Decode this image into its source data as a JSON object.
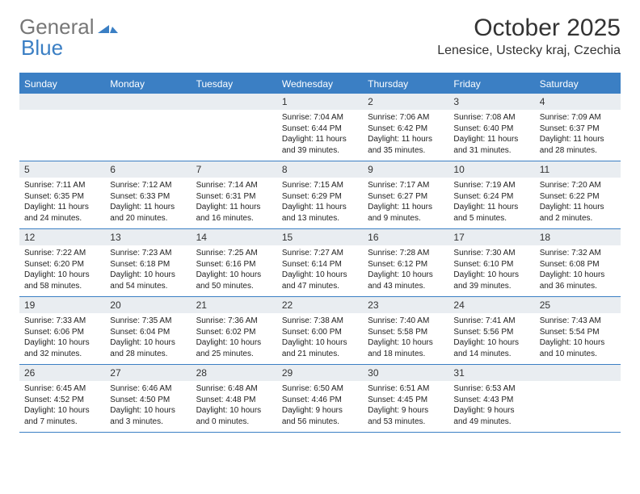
{
  "brand": {
    "part1": "General",
    "part2": "Blue"
  },
  "title": "October 2025",
  "location": "Lenesice, Ustecky kraj, Czechia",
  "colors": {
    "header_bg": "#3b7fc4",
    "cell_num_bg": "#e9edf1",
    "border": "#3b7fc4",
    "page_bg": "#ffffff",
    "text": "#333333",
    "logo_gray": "#777777"
  },
  "type": "calendar",
  "day_names": [
    "Sunday",
    "Monday",
    "Tuesday",
    "Wednesday",
    "Thursday",
    "Friday",
    "Saturday"
  ],
  "weeks": [
    [
      {
        "num": "",
        "lines": []
      },
      {
        "num": "",
        "lines": []
      },
      {
        "num": "",
        "lines": []
      },
      {
        "num": "1",
        "lines": [
          "Sunrise: 7:04 AM",
          "Sunset: 6:44 PM",
          "Daylight: 11 hours and 39 minutes."
        ]
      },
      {
        "num": "2",
        "lines": [
          "Sunrise: 7:06 AM",
          "Sunset: 6:42 PM",
          "Daylight: 11 hours and 35 minutes."
        ]
      },
      {
        "num": "3",
        "lines": [
          "Sunrise: 7:08 AM",
          "Sunset: 6:40 PM",
          "Daylight: 11 hours and 31 minutes."
        ]
      },
      {
        "num": "4",
        "lines": [
          "Sunrise: 7:09 AM",
          "Sunset: 6:37 PM",
          "Daylight: 11 hours and 28 minutes."
        ]
      }
    ],
    [
      {
        "num": "5",
        "lines": [
          "Sunrise: 7:11 AM",
          "Sunset: 6:35 PM",
          "Daylight: 11 hours and 24 minutes."
        ]
      },
      {
        "num": "6",
        "lines": [
          "Sunrise: 7:12 AM",
          "Sunset: 6:33 PM",
          "Daylight: 11 hours and 20 minutes."
        ]
      },
      {
        "num": "7",
        "lines": [
          "Sunrise: 7:14 AM",
          "Sunset: 6:31 PM",
          "Daylight: 11 hours and 16 minutes."
        ]
      },
      {
        "num": "8",
        "lines": [
          "Sunrise: 7:15 AM",
          "Sunset: 6:29 PM",
          "Daylight: 11 hours and 13 minutes."
        ]
      },
      {
        "num": "9",
        "lines": [
          "Sunrise: 7:17 AM",
          "Sunset: 6:27 PM",
          "Daylight: 11 hours and 9 minutes."
        ]
      },
      {
        "num": "10",
        "lines": [
          "Sunrise: 7:19 AM",
          "Sunset: 6:24 PM",
          "Daylight: 11 hours and 5 minutes."
        ]
      },
      {
        "num": "11",
        "lines": [
          "Sunrise: 7:20 AM",
          "Sunset: 6:22 PM",
          "Daylight: 11 hours and 2 minutes."
        ]
      }
    ],
    [
      {
        "num": "12",
        "lines": [
          "Sunrise: 7:22 AM",
          "Sunset: 6:20 PM",
          "Daylight: 10 hours and 58 minutes."
        ]
      },
      {
        "num": "13",
        "lines": [
          "Sunrise: 7:23 AM",
          "Sunset: 6:18 PM",
          "Daylight: 10 hours and 54 minutes."
        ]
      },
      {
        "num": "14",
        "lines": [
          "Sunrise: 7:25 AM",
          "Sunset: 6:16 PM",
          "Daylight: 10 hours and 50 minutes."
        ]
      },
      {
        "num": "15",
        "lines": [
          "Sunrise: 7:27 AM",
          "Sunset: 6:14 PM",
          "Daylight: 10 hours and 47 minutes."
        ]
      },
      {
        "num": "16",
        "lines": [
          "Sunrise: 7:28 AM",
          "Sunset: 6:12 PM",
          "Daylight: 10 hours and 43 minutes."
        ]
      },
      {
        "num": "17",
        "lines": [
          "Sunrise: 7:30 AM",
          "Sunset: 6:10 PM",
          "Daylight: 10 hours and 39 minutes."
        ]
      },
      {
        "num": "18",
        "lines": [
          "Sunrise: 7:32 AM",
          "Sunset: 6:08 PM",
          "Daylight: 10 hours and 36 minutes."
        ]
      }
    ],
    [
      {
        "num": "19",
        "lines": [
          "Sunrise: 7:33 AM",
          "Sunset: 6:06 PM",
          "Daylight: 10 hours and 32 minutes."
        ]
      },
      {
        "num": "20",
        "lines": [
          "Sunrise: 7:35 AM",
          "Sunset: 6:04 PM",
          "Daylight: 10 hours and 28 minutes."
        ]
      },
      {
        "num": "21",
        "lines": [
          "Sunrise: 7:36 AM",
          "Sunset: 6:02 PM",
          "Daylight: 10 hours and 25 minutes."
        ]
      },
      {
        "num": "22",
        "lines": [
          "Sunrise: 7:38 AM",
          "Sunset: 6:00 PM",
          "Daylight: 10 hours and 21 minutes."
        ]
      },
      {
        "num": "23",
        "lines": [
          "Sunrise: 7:40 AM",
          "Sunset: 5:58 PM",
          "Daylight: 10 hours and 18 minutes."
        ]
      },
      {
        "num": "24",
        "lines": [
          "Sunrise: 7:41 AM",
          "Sunset: 5:56 PM",
          "Daylight: 10 hours and 14 minutes."
        ]
      },
      {
        "num": "25",
        "lines": [
          "Sunrise: 7:43 AM",
          "Sunset: 5:54 PM",
          "Daylight: 10 hours and 10 minutes."
        ]
      }
    ],
    [
      {
        "num": "26",
        "lines": [
          "Sunrise: 6:45 AM",
          "Sunset: 4:52 PM",
          "Daylight: 10 hours and 7 minutes."
        ]
      },
      {
        "num": "27",
        "lines": [
          "Sunrise: 6:46 AM",
          "Sunset: 4:50 PM",
          "Daylight: 10 hours and 3 minutes."
        ]
      },
      {
        "num": "28",
        "lines": [
          "Sunrise: 6:48 AM",
          "Sunset: 4:48 PM",
          "Daylight: 10 hours and 0 minutes."
        ]
      },
      {
        "num": "29",
        "lines": [
          "Sunrise: 6:50 AM",
          "Sunset: 4:46 PM",
          "Daylight: 9 hours and 56 minutes."
        ]
      },
      {
        "num": "30",
        "lines": [
          "Sunrise: 6:51 AM",
          "Sunset: 4:45 PM",
          "Daylight: 9 hours and 53 minutes."
        ]
      },
      {
        "num": "31",
        "lines": [
          "Sunrise: 6:53 AM",
          "Sunset: 4:43 PM",
          "Daylight: 9 hours and 49 minutes."
        ]
      },
      {
        "num": "",
        "lines": []
      }
    ]
  ]
}
